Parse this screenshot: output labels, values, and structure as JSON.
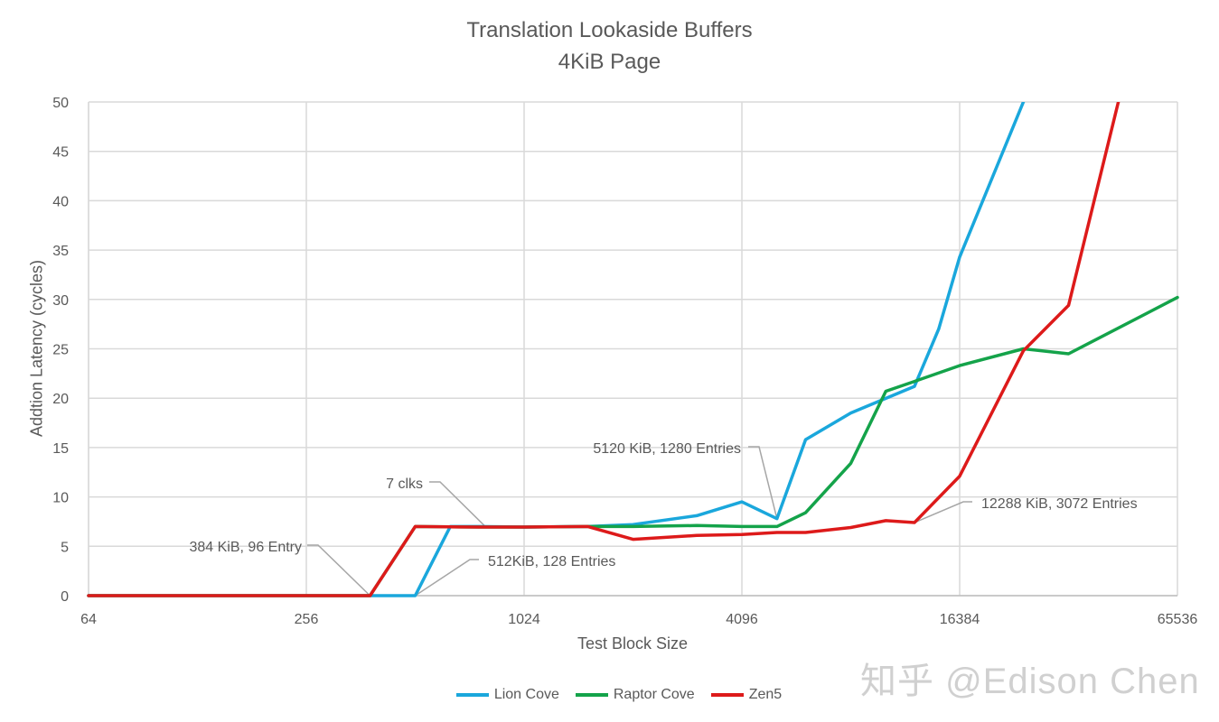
{
  "chart_data": {
    "type": "line",
    "title": "Translation Lookaside Buffers",
    "subtitle": "4KiB Page",
    "xlabel": "Test Block Size",
    "ylabel": "Addtion Latency (cycles)",
    "x_scale": "log2",
    "xlim": [
      64,
      65536
    ],
    "ylim": [
      0,
      50
    ],
    "x_ticks": [
      "64",
      "256",
      "1024",
      "4096",
      "16384",
      "65536"
    ],
    "y_ticks": [
      "0",
      "5",
      "10",
      "15",
      "20",
      "25",
      "30",
      "35",
      "40",
      "45",
      "50"
    ],
    "grid": true,
    "legend_position": "bottom",
    "series": [
      {
        "name": "Lion Cove",
        "color": "#1aa7dc",
        "points": [
          [
            64,
            0
          ],
          [
            384,
            0
          ],
          [
            512,
            0
          ],
          [
            640,
            7.0
          ],
          [
            768,
            7.0
          ],
          [
            1024,
            6.95
          ],
          [
            1536,
            7.0
          ],
          [
            2048,
            7.2
          ],
          [
            3072,
            8.1
          ],
          [
            4096,
            9.5
          ],
          [
            5120,
            7.8
          ],
          [
            6144,
            15.8
          ],
          [
            8192,
            18.5
          ],
          [
            12288,
            21.2
          ],
          [
            14336,
            27.0
          ],
          [
            16384,
            34.3
          ],
          [
            24576,
            50.0
          ]
        ]
      },
      {
        "name": "Raptor Cove",
        "color": "#14a34a",
        "points": [
          [
            64,
            0
          ],
          [
            384,
            0
          ],
          [
            512,
            7.0
          ],
          [
            768,
            6.95
          ],
          [
            1024,
            6.95
          ],
          [
            1536,
            7.0
          ],
          [
            2048,
            7.0
          ],
          [
            3072,
            7.1
          ],
          [
            4096,
            7.0
          ],
          [
            5120,
            7.0
          ],
          [
            6144,
            8.4
          ],
          [
            8192,
            13.4
          ],
          [
            10240,
            20.7
          ],
          [
            12288,
            21.7
          ],
          [
            16384,
            23.3
          ],
          [
            24576,
            25.0
          ],
          [
            32768,
            24.5
          ],
          [
            65536,
            30.2
          ]
        ]
      },
      {
        "name": "Zen5",
        "color": "#dd1a1a",
        "points": [
          [
            64,
            0
          ],
          [
            384,
            0
          ],
          [
            512,
            7.0
          ],
          [
            768,
            6.95
          ],
          [
            1024,
            6.95
          ],
          [
            1536,
            7.0
          ],
          [
            2048,
            5.7
          ],
          [
            3072,
            6.1
          ],
          [
            4096,
            6.2
          ],
          [
            5120,
            6.4
          ],
          [
            6144,
            6.4
          ],
          [
            8192,
            6.9
          ],
          [
            10240,
            7.6
          ],
          [
            12288,
            7.4
          ],
          [
            16384,
            12.1
          ],
          [
            24576,
            24.8
          ],
          [
            32768,
            29.4
          ],
          [
            45000,
            50.0
          ]
        ]
      }
    ],
    "annotations": [
      {
        "text": "384 KiB, 96 Entry",
        "x": 384,
        "y": 0
      },
      {
        "text": "512KiB, 128 Entries",
        "x": 512,
        "y": 0
      },
      {
        "text": "7 clks",
        "x": 800,
        "y": 7
      },
      {
        "text": "5120 KiB, 1280 Entries",
        "x": 5120,
        "y": 7.8
      },
      {
        "text": "12288 KiB, 3072 Entries",
        "x": 12288,
        "y": 7.4
      }
    ]
  },
  "watermark": "知乎 @Edison Chen"
}
